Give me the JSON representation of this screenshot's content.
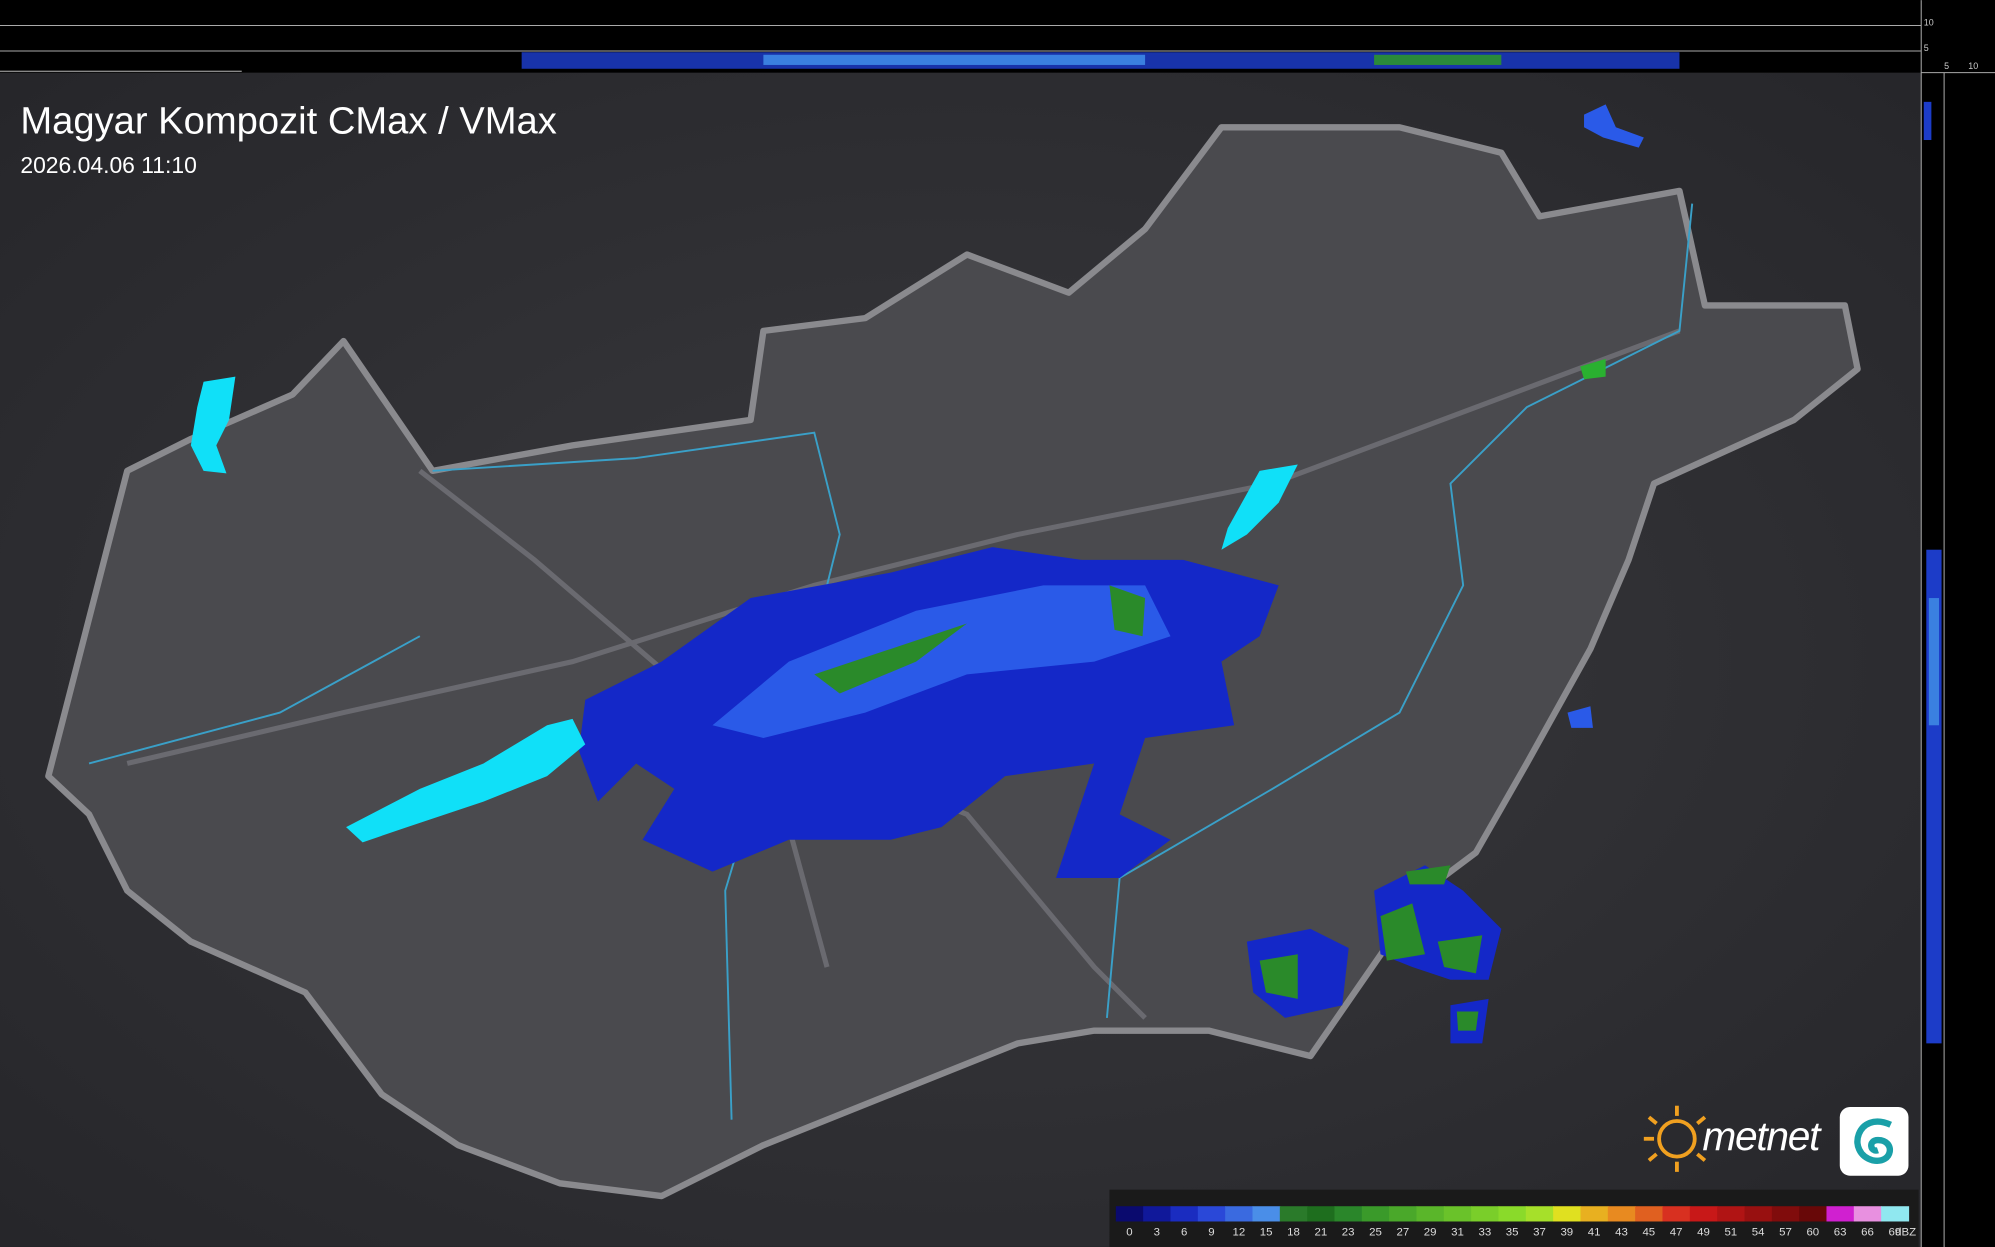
{
  "header": {
    "title": "Magyar Kompozit CMax / VMax",
    "timestamp": "2026.04.06 11:10"
  },
  "logo": {
    "text": "metnet"
  },
  "top_profile": {
    "labels": [
      "10",
      "5"
    ]
  },
  "side_profile": {
    "labels": [
      "5",
      "10"
    ]
  },
  "legend": {
    "labels": [
      "0",
      "3",
      "6",
      "9",
      "12",
      "15",
      "18",
      "21",
      "23",
      "25",
      "27",
      "29",
      "31",
      "33",
      "35",
      "37",
      "39",
      "41",
      "43",
      "45",
      "47",
      "49",
      "51",
      "54",
      "57",
      "60",
      "63",
      "66",
      "69"
    ],
    "colors": [
      "#0a0a6e",
      "#10189a",
      "#1a2cc0",
      "#2a48d8",
      "#3a6ae0",
      "#4a8ee8",
      "#2a7a2a",
      "#1e6e1e",
      "#2a862a",
      "#3a9a2a",
      "#4aa82a",
      "#5ab62a",
      "#6ac22a",
      "#7ace2a",
      "#8ada2a",
      "#a6e02a",
      "#e0e020",
      "#e8b020",
      "#e88a20",
      "#e06020",
      "#d83020",
      "#c81818",
      "#b01414",
      "#981010",
      "#800c0c",
      "#680808",
      "#d020d0",
      "#e890e0",
      "#90e8f0"
    ],
    "unit": "dBZ"
  }
}
